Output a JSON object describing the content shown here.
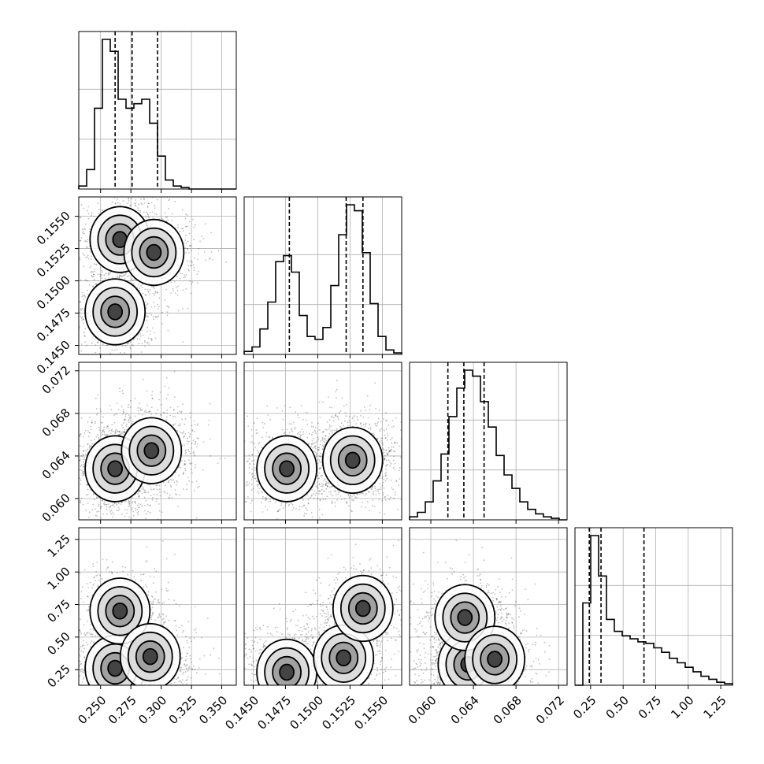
{
  "chart_data": {
    "type": "corner",
    "grid": true,
    "parameters": [
      {
        "range": [
          0.232,
          0.362
        ],
        "ticks": [
          0.25,
          0.275,
          0.3,
          0.325,
          0.35
        ],
        "tick_labels": [
          "0.250",
          "0.275",
          "0.300",
          "0.325",
          "0.350"
        ],
        "quantiles": [
          0.262,
          0.276,
          0.297
        ]
      },
      {
        "range": [
          0.1443,
          0.1565
        ],
        "ticks": [
          0.145,
          0.1475,
          0.15,
          0.1525,
          0.155
        ],
        "tick_labels": [
          "0.1450",
          "0.1475",
          "0.1500",
          "0.1525",
          "0.1550"
        ],
        "quantiles": [
          0.1478,
          0.1522,
          0.1535
        ]
      },
      {
        "range": [
          0.058,
          0.0728
        ],
        "ticks": [
          0.06,
          0.064,
          0.068,
          0.072
        ],
        "tick_labels": [
          "0.060",
          "0.064",
          "0.068",
          "0.072"
        ],
        "quantiles": [
          0.0616,
          0.0631,
          0.065
        ]
      },
      {
        "range": [
          0.13,
          1.34
        ],
        "ticks": [
          0.25,
          0.5,
          0.75,
          1.0,
          1.25
        ],
        "tick_labels": [
          "0.25",
          "0.50",
          "0.75",
          "1.00",
          "1.25"
        ],
        "quantiles": [
          0.24,
          0.33,
          0.66
        ]
      }
    ],
    "histograms": [
      [
        0.02,
        0.13,
        0.54,
        1.0,
        0.92,
        0.6,
        0.54,
        0.57,
        0.6,
        0.44,
        0.22,
        0.06,
        0.02,
        0.01,
        0.0,
        0.0,
        0.0,
        0.0,
        0.0,
        0.0
      ],
      [
        0.02,
        0.05,
        0.17,
        0.35,
        0.62,
        0.66,
        0.55,
        0.26,
        0.12,
        0.1,
        0.18,
        0.46,
        0.8,
        1.0,
        0.96,
        0.68,
        0.34,
        0.12,
        0.03,
        0.01
      ],
      [
        0.02,
        0.05,
        0.12,
        0.26,
        0.44,
        0.69,
        0.88,
        1.0,
        0.96,
        0.79,
        0.62,
        0.43,
        0.3,
        0.21,
        0.12,
        0.07,
        0.04,
        0.02,
        0.01,
        0.0
      ],
      [
        0.0,
        0.55,
        1.0,
        0.73,
        0.44,
        0.36,
        0.33,
        0.31,
        0.29,
        0.28,
        0.25,
        0.22,
        0.18,
        0.15,
        0.12,
        0.09,
        0.06,
        0.04,
        0.02,
        0.01
      ]
    ],
    "density_modes": {
      "1_0": [
        [
          0.262,
          0.1476,
          0.18
        ],
        [
          0.266,
          0.1532,
          0.17
        ],
        [
          0.294,
          0.1522,
          0.2
        ]
      ],
      "2_0": [
        [
          0.262,
          0.0628,
          0.35
        ],
        [
          0.292,
          0.0645,
          0.25
        ]
      ],
      "2_1": [
        [
          0.1476,
          0.0628,
          0.22
        ],
        [
          0.1527,
          0.0636,
          0.35
        ]
      ],
      "3_0": [
        [
          0.262,
          0.26,
          0.3
        ],
        [
          0.266,
          0.7,
          0.15
        ],
        [
          0.291,
          0.35,
          0.2
        ]
      ],
      "3_1": [
        [
          0.1476,
          0.23,
          0.22
        ],
        [
          0.152,
          0.34,
          0.2
        ],
        [
          0.1535,
          0.72,
          0.15
        ]
      ],
      "3_2": [
        [
          0.0635,
          0.29,
          0.4
        ],
        [
          0.0632,
          0.65,
          0.2
        ],
        [
          0.066,
          0.33,
          0.15
        ]
      ]
    }
  }
}
